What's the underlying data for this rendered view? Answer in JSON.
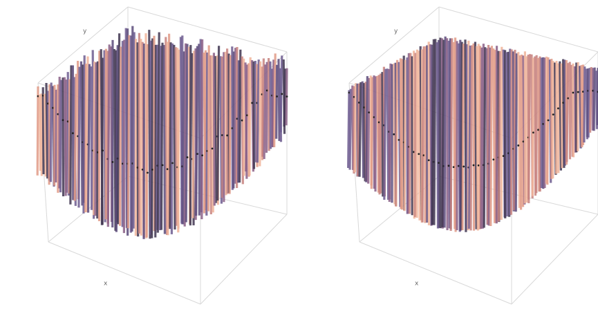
{
  "chart_data": [
    {
      "type": "surface",
      "xlabel": "x",
      "ylabel": "y"
    },
    {
      "type": "surface",
      "xlabel": "x",
      "ylabel": "y"
    }
  ]
}
